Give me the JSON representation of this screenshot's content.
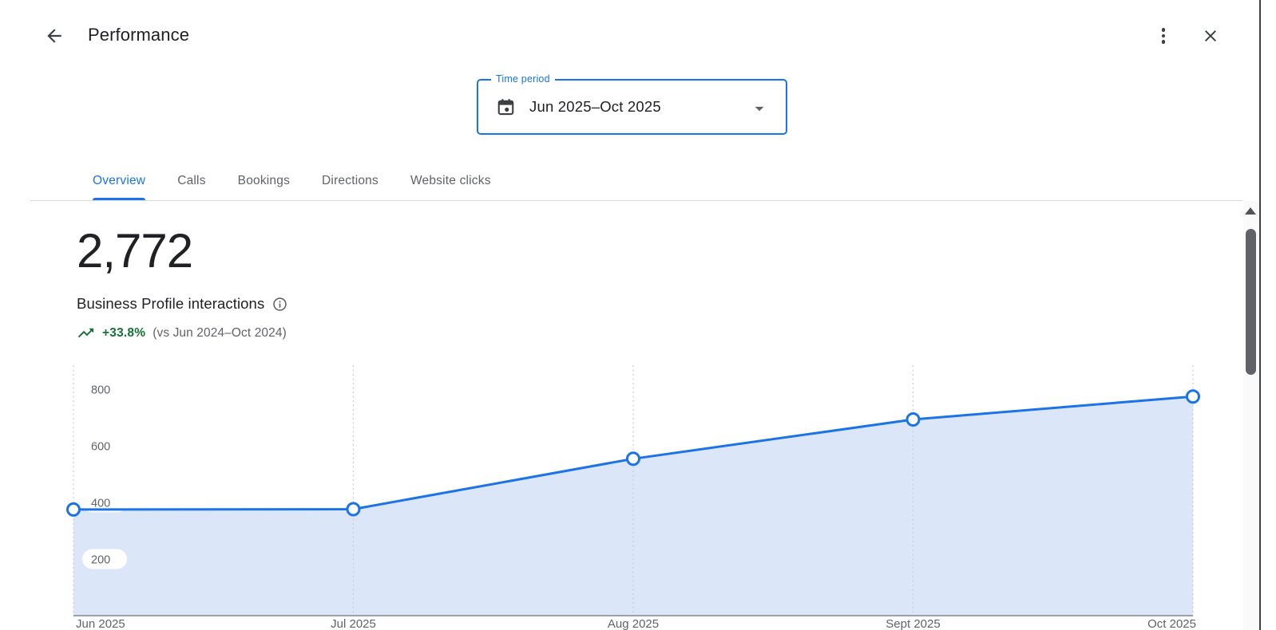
{
  "header": {
    "title": "Performance"
  },
  "time_period": {
    "label": "Time period",
    "value": "Jun 2025–Oct 2025"
  },
  "tabs": [
    {
      "label": "Overview",
      "active": true
    },
    {
      "label": "Calls",
      "active": false
    },
    {
      "label": "Bookings",
      "active": false
    },
    {
      "label": "Directions",
      "active": false
    },
    {
      "label": "Website clicks",
      "active": false
    }
  ],
  "metric": {
    "value": "2,772",
    "label": "Business Profile interactions",
    "delta": "+33.8%",
    "comparison": "(vs Jun 2024–Oct 2024)",
    "delta_color": "#137333"
  },
  "chart_data": {
    "type": "area",
    "title": "Business Profile interactions over time",
    "x": [
      "Jun 2025",
      "Jul 2025",
      "Aug 2025",
      "Sept 2025",
      "Oct 2025"
    ],
    "values": [
      375,
      376,
      554,
      693,
      774
    ],
    "yticks": [
      200,
      400,
      600,
      800
    ],
    "ylim": [
      0,
      905
    ],
    "xlabel": "",
    "ylabel": "",
    "grid": "vertical-dashed",
    "legend": "none",
    "line_color": "#1a73e8",
    "fill_color": "#dce6f9",
    "axis_color": "#9aa0a6",
    "grid_color": "#c9ccd1",
    "tick_label_color": "#5f6368",
    "point_style": "open-circle"
  },
  "colors": {
    "accent_blue": "#1a73e8",
    "text_dark": "#202124",
    "text_gray": "#5f6368",
    "divider": "#dadce0",
    "positive_green": "#137333"
  }
}
